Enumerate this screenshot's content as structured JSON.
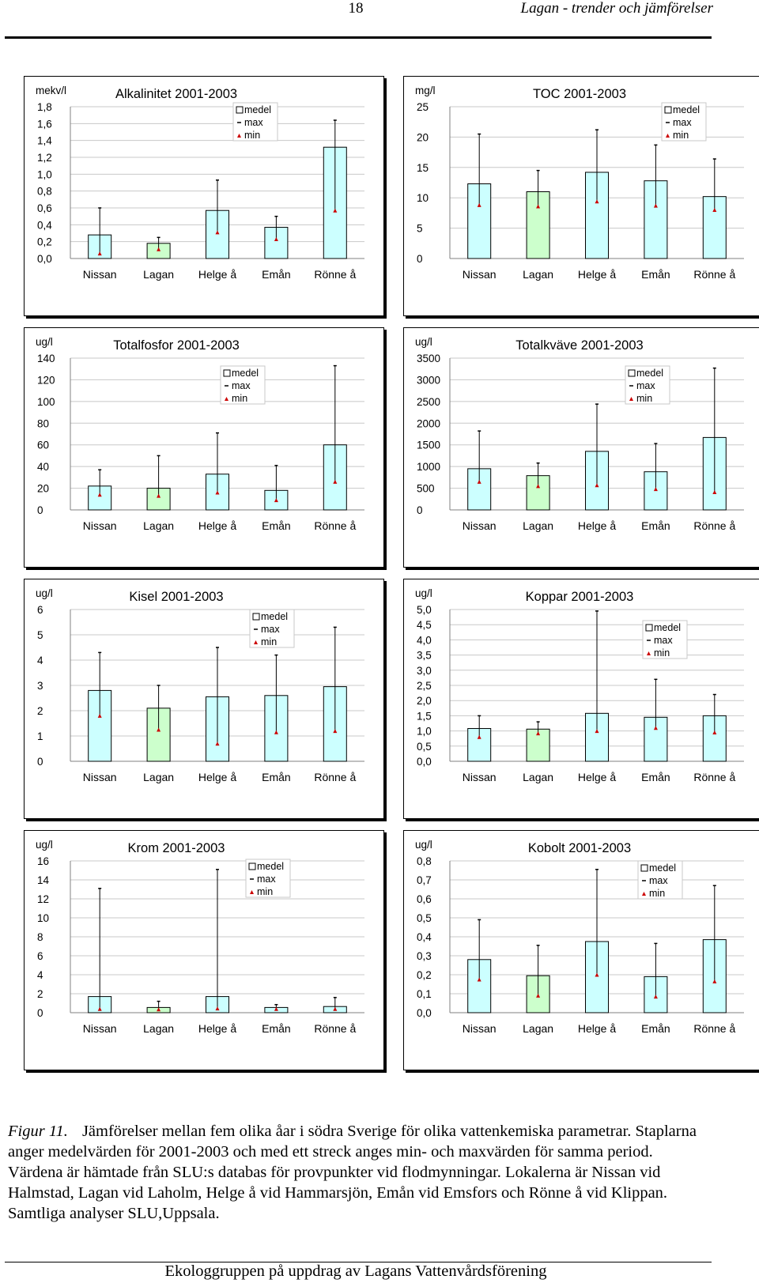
{
  "header": {
    "page_number": "18",
    "running_title": "Lagan - trender och jämförelser"
  },
  "legend": {
    "mean": "medel",
    "max": "max",
    "min": "min"
  },
  "colors": {
    "bar_default": "#ccffff",
    "bar_highlight": "#ccffcc",
    "marker": "#cc0000"
  },
  "chart_data": [
    {
      "type": "bar",
      "title": "Alkalinitet 2001-2003",
      "unit": "mekv/l",
      "categories": [
        "Nissan",
        "Lagan",
        "Helge å",
        "Emån",
        "Rönne å"
      ],
      "yticks": [
        "0,0",
        "0,2",
        "0,4",
        "0,6",
        "0,8",
        "1,0",
        "1,2",
        "1,4",
        "1,6",
        "1,8"
      ],
      "ylim": [
        0,
        1.8
      ],
      "series": [
        {
          "name": "medel",
          "values": [
            0.28,
            0.18,
            0.57,
            0.37,
            1.32
          ]
        },
        {
          "name": "max",
          "values": [
            0.6,
            0.25,
            0.93,
            0.5,
            1.64
          ]
        },
        {
          "name": "min",
          "values": [
            0.06,
            0.11,
            0.31,
            0.23,
            0.57
          ]
        }
      ]
    },
    {
      "type": "bar",
      "title": "TOC 2001-2003",
      "unit": "mg/l",
      "categories": [
        "Nissan",
        "Lagan",
        "Helge å",
        "Emån",
        "Rönne å"
      ],
      "yticks": [
        "0",
        "5",
        "10",
        "15",
        "20",
        "25"
      ],
      "ylim": [
        0,
        25
      ],
      "series": [
        {
          "name": "medel",
          "values": [
            12.3,
            11.0,
            14.2,
            12.8,
            10.2
          ]
        },
        {
          "name": "max",
          "values": [
            20.5,
            14.5,
            21.2,
            18.7,
            16.4
          ]
        },
        {
          "name": "min",
          "values": [
            8.8,
            8.6,
            9.4,
            8.7,
            8.0
          ]
        }
      ]
    },
    {
      "type": "bar",
      "title": "Totalfosfor 2001-2003",
      "unit": "ug/l",
      "categories": [
        "Nissan",
        "Lagan",
        "Helge å",
        "Emån",
        "Rönne å"
      ],
      "yticks": [
        "0",
        "20",
        "40",
        "60",
        "80",
        "100",
        "120",
        "140"
      ],
      "ylim": [
        0,
        140
      ],
      "series": [
        {
          "name": "medel",
          "values": [
            22,
            20,
            33,
            18,
            60
          ]
        },
        {
          "name": "max",
          "values": [
            37,
            50,
            71,
            41,
            133
          ]
        },
        {
          "name": "min",
          "values": [
            14,
            13,
            16,
            9,
            26
          ]
        }
      ]
    },
    {
      "type": "bar",
      "title": "Totalkväve 2001-2003",
      "unit": "ug/l",
      "categories": [
        "Nissan",
        "Lagan",
        "Helge å",
        "Emån",
        "Rönne å"
      ],
      "yticks": [
        "0",
        "500",
        "1000",
        "1500",
        "2000",
        "2500",
        "3000",
        "3500"
      ],
      "ylim": [
        0,
        3500
      ],
      "series": [
        {
          "name": "medel",
          "values": [
            950,
            790,
            1350,
            880,
            1670
          ]
        },
        {
          "name": "max",
          "values": [
            1820,
            1080,
            2440,
            1530,
            3270
          ]
        },
        {
          "name": "min",
          "values": [
            650,
            550,
            570,
            480,
            410
          ]
        }
      ]
    },
    {
      "type": "bar",
      "title": "Kisel 2001-2003",
      "unit": "ug/l",
      "categories": [
        "Nissan",
        "Lagan",
        "Helge å",
        "Emån",
        "Rönne å"
      ],
      "yticks": [
        "0",
        "1",
        "2",
        "3",
        "4",
        "5",
        "6"
      ],
      "ylim": [
        0,
        6
      ],
      "series": [
        {
          "name": "medel",
          "values": [
            2.8,
            2.1,
            2.55,
            2.6,
            2.95
          ]
        },
        {
          "name": "max",
          "values": [
            4.3,
            3.0,
            4.5,
            4.2,
            5.3
          ]
        },
        {
          "name": "min",
          "values": [
            1.8,
            1.25,
            0.7,
            1.15,
            1.2
          ]
        }
      ]
    },
    {
      "type": "bar",
      "title": "Koppar 2001-2003",
      "unit": "ug/l",
      "categories": [
        "Nissan",
        "Lagan",
        "Helge å",
        "Emån",
        "Rönne å"
      ],
      "yticks": [
        "0,0",
        "0,5",
        "1,0",
        "1,5",
        "2,0",
        "2,5",
        "3,0",
        "3,5",
        "4,0",
        "4,5",
        "5,0"
      ],
      "ylim": [
        0,
        5
      ],
      "series": [
        {
          "name": "medel",
          "values": [
            1.08,
            1.06,
            1.58,
            1.45,
            1.5
          ]
        },
        {
          "name": "max",
          "values": [
            1.5,
            1.3,
            4.95,
            2.7,
            2.2
          ]
        },
        {
          "name": "min",
          "values": [
            0.8,
            0.92,
            1.0,
            1.1,
            0.95
          ]
        }
      ]
    },
    {
      "type": "bar",
      "title": "Krom 2001-2003",
      "unit": "ug/l",
      "categories": [
        "Nissan",
        "Lagan",
        "Helge å",
        "Emån",
        "Rönne å"
      ],
      "yticks": [
        "0",
        "2",
        "4",
        "6",
        "8",
        "10",
        "12",
        "14",
        "16"
      ],
      "ylim": [
        0,
        16
      ],
      "series": [
        {
          "name": "medel",
          "values": [
            1.7,
            0.55,
            1.7,
            0.55,
            0.65
          ]
        },
        {
          "name": "max",
          "values": [
            13.1,
            1.2,
            15.1,
            0.85,
            1.6
          ]
        },
        {
          "name": "min",
          "values": [
            0.4,
            0.35,
            0.45,
            0.4,
            0.4
          ]
        }
      ]
    },
    {
      "type": "bar",
      "title": "Kobolt 2001-2003",
      "unit": "ug/l",
      "categories": [
        "Nissan",
        "Lagan",
        "Helge å",
        "Emån",
        "Rönne å"
      ],
      "yticks": [
        "0,0",
        "0,1",
        "0,2",
        "0,3",
        "0,4",
        "0,5",
        "0,6",
        "0,7",
        "0,8"
      ],
      "ylim": [
        0,
        0.8
      ],
      "series": [
        {
          "name": "medel",
          "values": [
            0.28,
            0.195,
            0.375,
            0.19,
            0.385
          ]
        },
        {
          "name": "max",
          "values": [
            0.49,
            0.355,
            0.755,
            0.365,
            0.67
          ]
        },
        {
          "name": "min",
          "values": [
            0.175,
            0.09,
            0.2,
            0.085,
            0.165
          ]
        }
      ]
    }
  ],
  "caption": {
    "label": "Figur 11.",
    "text": "Jämförelser mellan fem olika åar i södra Sverige för olika vattenkemiska parametrar. Staplarna anger medelvärden för 2001-2003 och med ett streck anges min- och maxvärden för samma period. Värdena är hämtade från SLU:s databas för provpunkter vid flodmynningar. Lokalerna är Nissan vid Halmstad, Lagan vid Laholm, Helge å vid Hammarsjön, Emån vid Emsfors och Rönne å vid Klippan. Samtliga analyser SLU,Uppsala."
  },
  "footer": {
    "text": "Ekologgruppen på uppdrag av Lagans Vattenvårdsförening"
  }
}
